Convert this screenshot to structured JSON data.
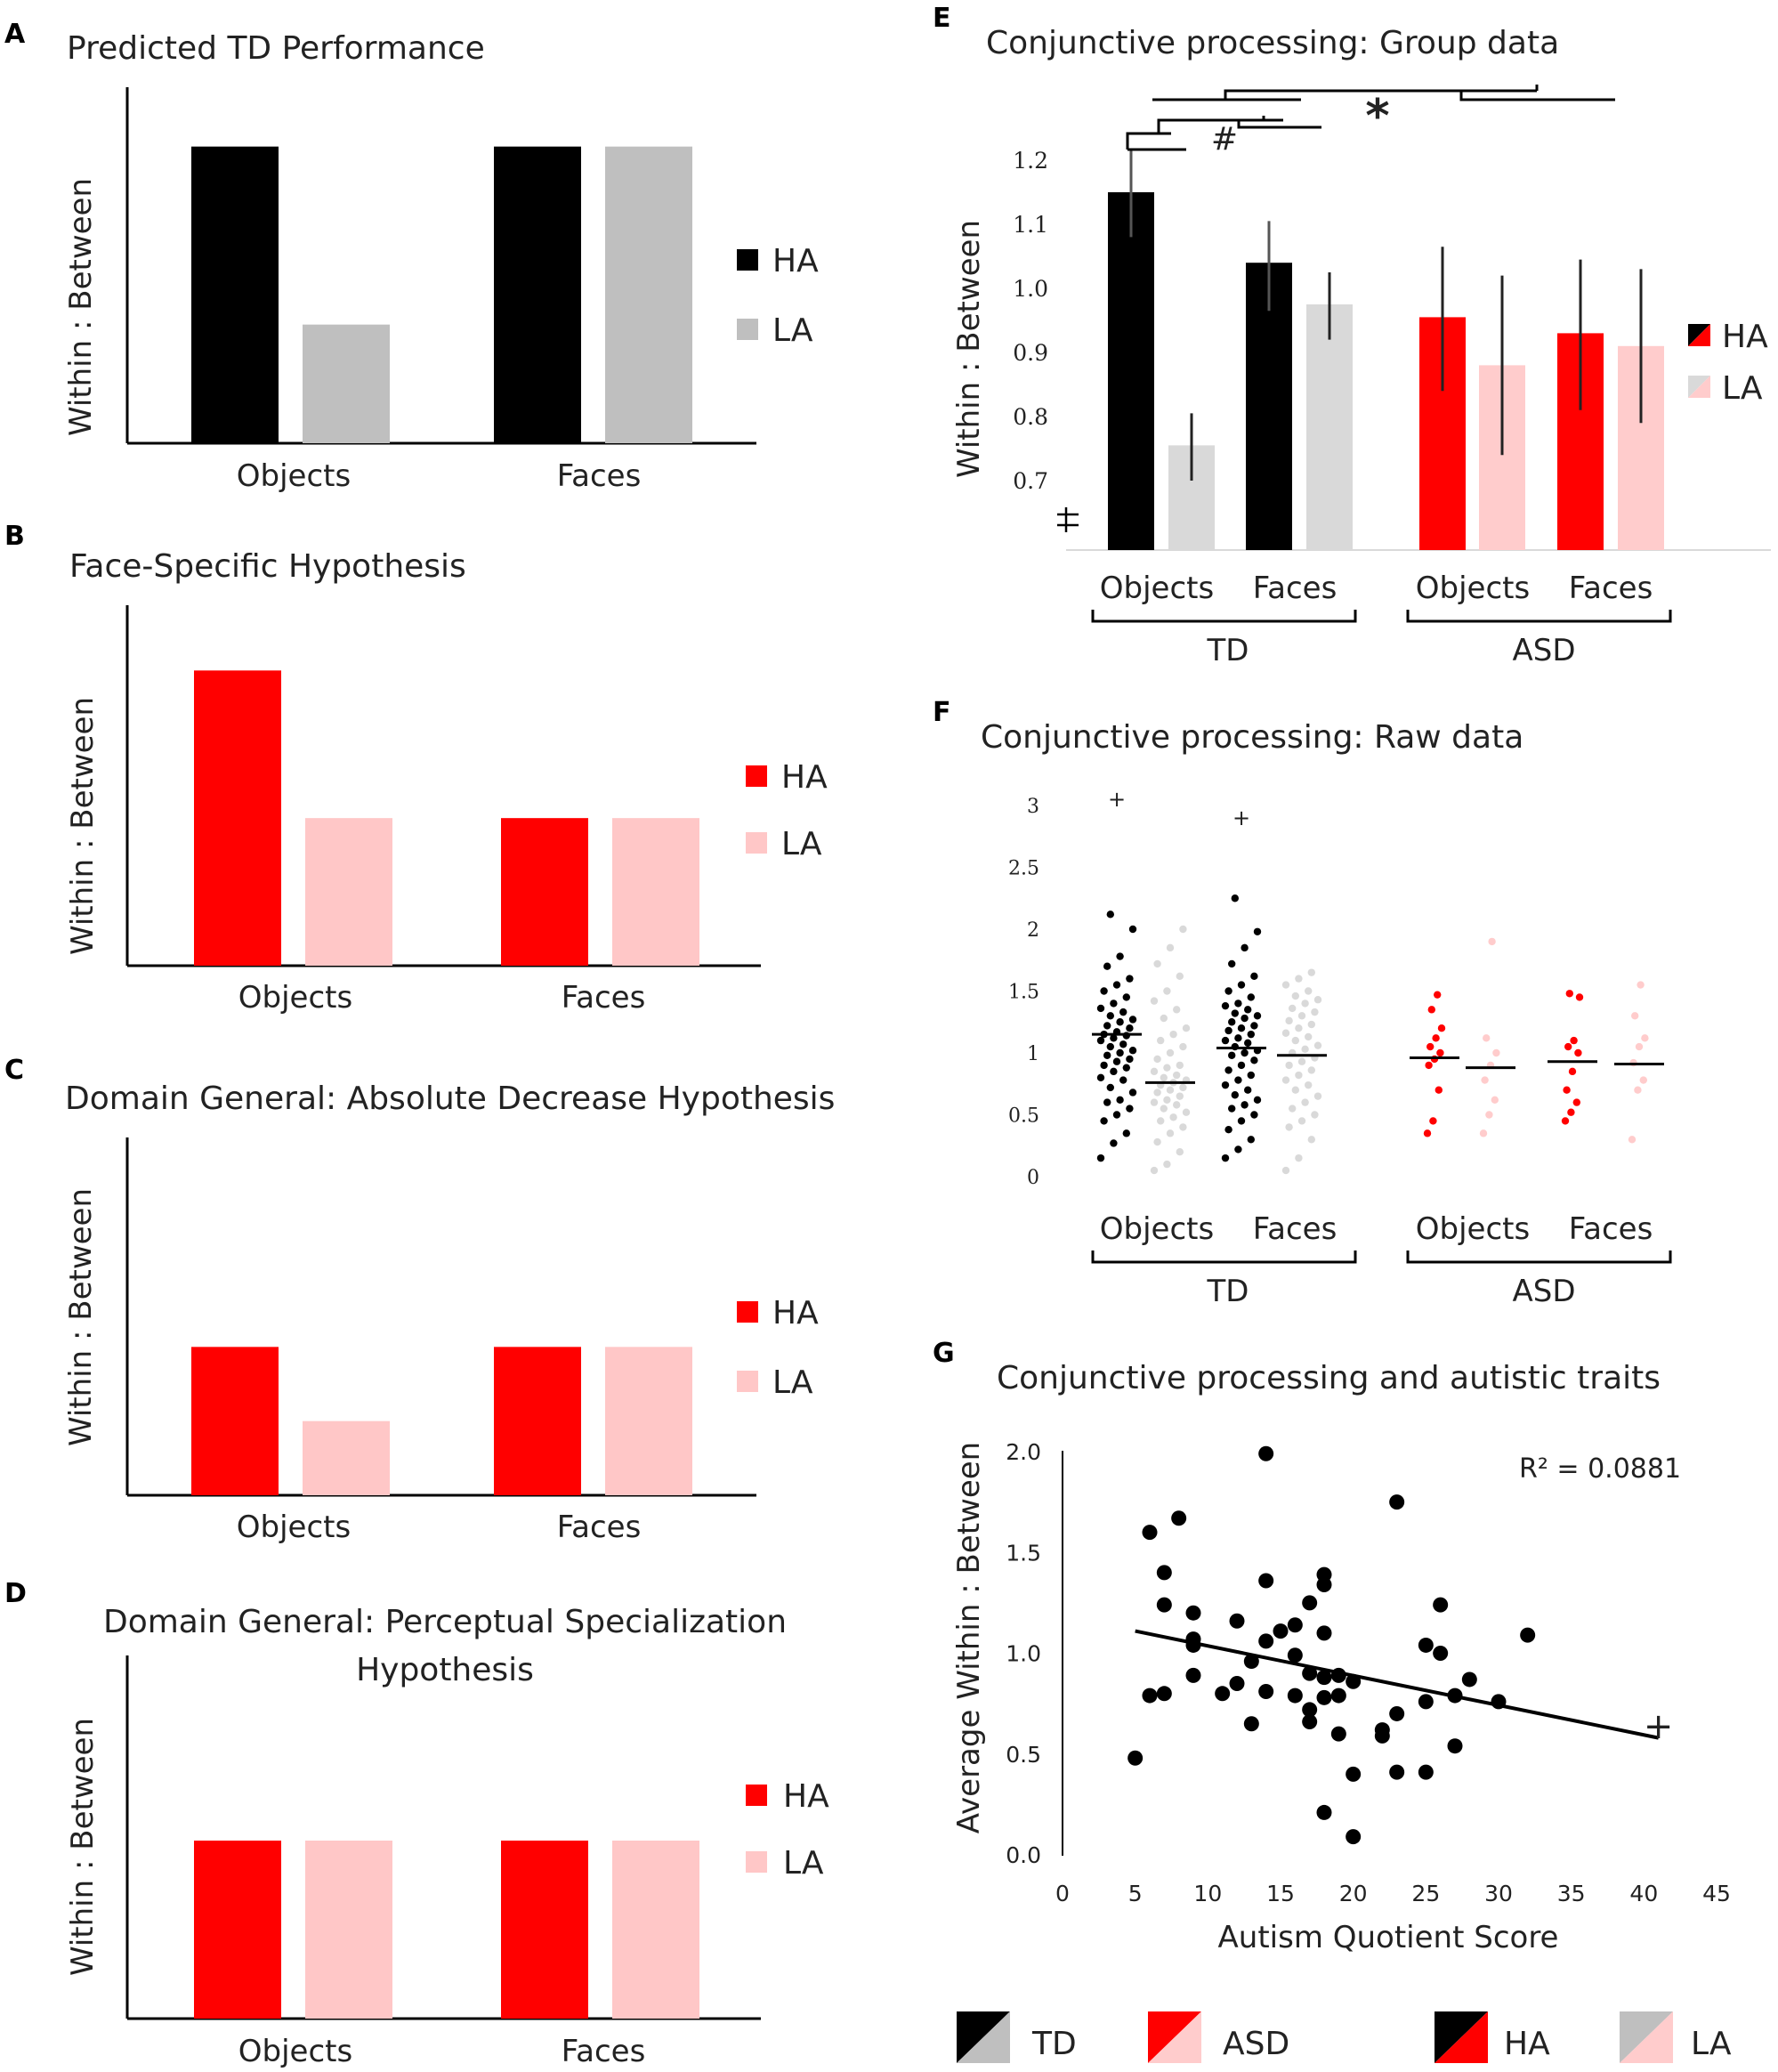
{
  "colors": {
    "black": "#000000",
    "gray": "#bfbfbf",
    "gray_light": "#d9d9d9",
    "red": "#ff0000",
    "pink": "#ffc7c7",
    "pink_light": "#ffcccc"
  },
  "panels": {
    "A": {
      "letter": "A",
      "title": "Predicted TD Performance",
      "ylabel": "Within : Between",
      "legend": [
        "HA",
        "LA"
      ],
      "chart_data": {
        "type": "bar",
        "categories": [
          "Objects",
          "Faces"
        ],
        "series": [
          {
            "name": "HA",
            "values": [
              1.0,
              1.0
            ]
          },
          {
            "name": "LA",
            "values": [
              0.4,
              1.0
            ]
          }
        ],
        "ylim": [
          0,
          1.2
        ]
      }
    },
    "B": {
      "letter": "B",
      "title": "Face-Specific Hypothesis",
      "ylabel": "Within : Between",
      "legend": [
        "HA",
        "LA"
      ],
      "chart_data": {
        "type": "bar",
        "categories": [
          "Objects",
          "Faces"
        ],
        "series": [
          {
            "name": "HA",
            "values": [
              1.0,
              0.5
            ]
          },
          {
            "name": "LA",
            "values": [
              0.5,
              0.5
            ]
          }
        ],
        "ylim": [
          0,
          1.2
        ]
      }
    },
    "C": {
      "letter": "C",
      "title": "Domain General: Absolute Decrease Hypothesis",
      "ylabel": "Within : Between",
      "legend": [
        "HA",
        "LA"
      ],
      "chart_data": {
        "type": "bar",
        "categories": [
          "Objects",
          "Faces"
        ],
        "series": [
          {
            "name": "HA",
            "values": [
              0.5,
              0.5
            ]
          },
          {
            "name": "LA",
            "values": [
              0.25,
              0.5
            ]
          }
        ],
        "ylim": [
          0,
          1.2
        ]
      }
    },
    "D": {
      "letter": "D",
      "title_line1": "Domain General: Perceptual Specialization",
      "title_line2": "Hypothesis",
      "ylabel": "Within : Between",
      "legend": [
        "HA",
        "LA"
      ],
      "chart_data": {
        "type": "bar",
        "categories": [
          "Objects",
          "Faces"
        ],
        "series": [
          {
            "name": "HA",
            "values": [
              0.6,
              0.6
            ]
          },
          {
            "name": "LA",
            "values": [
              0.6,
              0.6
            ]
          }
        ],
        "ylim": [
          0,
          1.2
        ]
      }
    },
    "E": {
      "letter": "E",
      "title": "Conjunctive processing: Group data",
      "ylabel": "Within : Between",
      "legend": [
        "HA",
        "LA"
      ],
      "groups": [
        "TD",
        "ASD"
      ],
      "sig_hash": "#",
      "sig_star": "*",
      "chart_data": {
        "type": "bar",
        "categories": [
          "Objects",
          "Faces",
          "Objects",
          "Faces"
        ],
        "groups": [
          "TD",
          "TD",
          "ASD",
          "ASD"
        ],
        "series": [
          {
            "name": "HA",
            "values": [
              1.15,
              1.04,
              0.955,
              0.93
            ],
            "err_low": [
              1.08,
              0.965,
              0.84,
              0.81
            ],
            "err_high": [
              1.215,
              1.105,
              1.065,
              1.045
            ]
          },
          {
            "name": "LA",
            "values": [
              0.755,
              0.975,
              0.88,
              0.91
            ],
            "err_low": [
              0.7,
              0.92,
              0.74,
              0.79
            ],
            "err_high": [
              0.805,
              1.025,
              1.02,
              1.03
            ]
          }
        ],
        "yticks": [
          "1.2",
          "1.1",
          "1.0",
          "0.9",
          "0.8",
          "0.7"
        ],
        "ylim": [
          0.6,
          1.2
        ]
      }
    },
    "F": {
      "letter": "F",
      "title": "Conjunctive processing: Raw data",
      "groups": [
        "TD",
        "ASD"
      ],
      "outlier_mark": "+",
      "chart_data": {
        "type": "scatter",
        "categories": [
          "Objects",
          "Faces",
          "Objects",
          "Faces"
        ],
        "groups": [
          "TD",
          "TD",
          "ASD",
          "ASD"
        ],
        "yticks": [
          "3",
          "2.5",
          "2",
          "1.5",
          "1",
          "0.5",
          "0"
        ],
        "ylim": [
          0,
          3
        ],
        "means": [
          1.15,
          0.76,
          1.04,
          0.98,
          0.96,
          0.88,
          0.93,
          0.91
        ],
        "outliers": [
          {
            "column": 0,
            "y": 3.05
          },
          {
            "column": 2,
            "y": 2.9
          }
        ],
        "columns": [
          {
            "label": "TD Objects HA",
            "values": [
              0.15,
              0.27,
              0.35,
              0.45,
              0.5,
              0.55,
              0.6,
              0.62,
              0.68,
              0.72,
              0.78,
              0.8,
              0.85,
              0.88,
              0.9,
              0.93,
              0.95,
              0.98,
              1.0,
              1.02,
              1.05,
              1.07,
              1.1,
              1.12,
              1.14,
              1.15,
              1.17,
              1.2,
              1.22,
              1.25,
              1.27,
              1.3,
              1.33,
              1.36,
              1.4,
              1.45,
              1.5,
              1.55,
              1.6,
              1.7,
              1.78,
              2.0,
              2.12
            ]
          },
          {
            "label": "TD Objects LA",
            "values": [
              0.05,
              0.1,
              0.2,
              0.28,
              0.35,
              0.4,
              0.45,
              0.48,
              0.52,
              0.55,
              0.58,
              0.6,
              0.62,
              0.65,
              0.68,
              0.7,
              0.72,
              0.74,
              0.76,
              0.78,
              0.8,
              0.82,
              0.85,
              0.88,
              0.9,
              0.95,
              1.0,
              1.05,
              1.1,
              1.15,
              1.2,
              1.28,
              1.35,
              1.42,
              1.5,
              1.62,
              1.72,
              1.85,
              2.0
            ]
          },
          {
            "label": "TD Faces HA",
            "values": [
              0.15,
              0.22,
              0.3,
              0.38,
              0.45,
              0.5,
              0.55,
              0.58,
              0.62,
              0.66,
              0.7,
              0.74,
              0.78,
              0.82,
              0.86,
              0.9,
              0.94,
              0.98,
              1.0,
              1.02,
              1.05,
              1.08,
              1.1,
              1.12,
              1.15,
              1.18,
              1.2,
              1.22,
              1.25,
              1.28,
              1.3,
              1.32,
              1.35,
              1.38,
              1.4,
              1.45,
              1.5,
              1.55,
              1.62,
              1.72,
              1.85,
              1.98,
              2.25
            ]
          },
          {
            "label": "TD Faces LA",
            "values": [
              0.05,
              0.15,
              0.3,
              0.4,
              0.45,
              0.5,
              0.55,
              0.6,
              0.65,
              0.7,
              0.74,
              0.78,
              0.82,
              0.86,
              0.9,
              0.93,
              0.96,
              1.0,
              1.03,
              1.06,
              1.1,
              1.13,
              1.16,
              1.2,
              1.23,
              1.26,
              1.3,
              1.33,
              1.36,
              1.4,
              1.43,
              1.46,
              1.5,
              1.55,
              1.6,
              1.65
            ]
          },
          {
            "label": "ASD Objects HA",
            "values": [
              0.35,
              0.45,
              0.7,
              0.9,
              0.95,
              1.0,
              1.05,
              1.12,
              1.2,
              1.35,
              1.47
            ]
          },
          {
            "label": "ASD Objects LA",
            "values": [
              0.35,
              0.5,
              0.62,
              0.78,
              0.9,
              1.0,
              1.12,
              1.9
            ]
          },
          {
            "label": "ASD Faces HA",
            "values": [
              0.45,
              0.52,
              0.6,
              0.7,
              0.85,
              1.0,
              1.05,
              1.1,
              1.45,
              1.48
            ]
          },
          {
            "label": "ASD Faces LA",
            "values": [
              0.3,
              0.7,
              0.78,
              0.92,
              1.05,
              1.12,
              1.3,
              1.55
            ]
          }
        ]
      }
    },
    "G": {
      "letter": "G",
      "title": "Conjunctive processing and autistic traits",
      "ylabel": "Average Within : Between",
      "xlabel": "Autism Quotient Score",
      "r2": "R² = 0.0881",
      "outlier_mark": "+",
      "chart_data": {
        "type": "scatter",
        "xticks": [
          "0",
          "5",
          "10",
          "15",
          "20",
          "25",
          "30",
          "35",
          "40",
          "45"
        ],
        "yticks": [
          "2.0",
          "1.5",
          "1.0",
          "0.5",
          "0.0"
        ],
        "xlim": [
          0,
          45
        ],
        "ylim": [
          0,
          2
        ],
        "trend": {
          "x": [
            5,
            41
          ],
          "y": [
            1.11,
            0.58
          ]
        },
        "outlier": {
          "x": 41,
          "y": 0.64
        },
        "points": [
          [
            5,
            0.48
          ],
          [
            6,
            1.6
          ],
          [
            6,
            0.79
          ],
          [
            7,
            1.4
          ],
          [
            7,
            0.8
          ],
          [
            7,
            1.24
          ],
          [
            8,
            1.67
          ],
          [
            9,
            1.2
          ],
          [
            9,
            1.07
          ],
          [
            9,
            1.04
          ],
          [
            9,
            0.89
          ],
          [
            11,
            0.8
          ],
          [
            12,
            1.16
          ],
          [
            12,
            0.85
          ],
          [
            13,
            0.96
          ],
          [
            13,
            0.65
          ],
          [
            14,
            1.99
          ],
          [
            14,
            1.06
          ],
          [
            14,
            1.36
          ],
          [
            14,
            0.81
          ],
          [
            15,
            1.11
          ],
          [
            16,
            1.14
          ],
          [
            16,
            0.99
          ],
          [
            16,
            0.79
          ],
          [
            17,
            1.25
          ],
          [
            17,
            0.72
          ],
          [
            17,
            0.66
          ],
          [
            17,
            0.9
          ],
          [
            18,
            1.39
          ],
          [
            18,
            1.34
          ],
          [
            18,
            1.1
          ],
          [
            18,
            0.88
          ],
          [
            18,
            0.78
          ],
          [
            18,
            0.21
          ],
          [
            19,
            0.89
          ],
          [
            19,
            0.79
          ],
          [
            19,
            0.6
          ],
          [
            20,
            0.86
          ],
          [
            20,
            0.4
          ],
          [
            20,
            0.09
          ],
          [
            22,
            0.62
          ],
          [
            22,
            0.59
          ],
          [
            23,
            1.75
          ],
          [
            23,
            0.7
          ],
          [
            23,
            0.41
          ],
          [
            25,
            1.04
          ],
          [
            25,
            0.76
          ],
          [
            25,
            0.41
          ],
          [
            26,
            1.24
          ],
          [
            26,
            1.0
          ],
          [
            27,
            0.79
          ],
          [
            27,
            0.54
          ],
          [
            28,
            0.87
          ],
          [
            30,
            0.76
          ],
          [
            32,
            1.09
          ]
        ]
      }
    }
  },
  "bottom_legend": {
    "items": [
      "TD",
      "ASD",
      "HA",
      "LA"
    ]
  }
}
